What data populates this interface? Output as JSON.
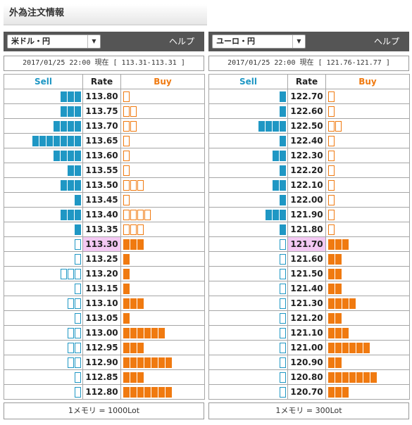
{
  "title": "外為注文情報",
  "panels": [
    {
      "currency": "米ドル・円",
      "help_label": "ヘルプ",
      "info": "2017/01/25  22:00 現在 [ 113.31-113.31 ]",
      "headers": {
        "sell": "Sell",
        "rate": "Rate",
        "buy": "Buy"
      },
      "current_rate": "113.30",
      "rows": [
        {
          "rate": "113.80",
          "sell": 3,
          "buy": 1
        },
        {
          "rate": "113.75",
          "sell": 3,
          "buy": 2
        },
        {
          "rate": "113.70",
          "sell": 4,
          "buy": 2
        },
        {
          "rate": "113.65",
          "sell": 7,
          "buy": 1
        },
        {
          "rate": "113.60",
          "sell": 4,
          "buy": 1
        },
        {
          "rate": "113.55",
          "sell": 2,
          "buy": 1
        },
        {
          "rate": "113.50",
          "sell": 3,
          "buy": 3
        },
        {
          "rate": "113.45",
          "sell": 1,
          "buy": 1
        },
        {
          "rate": "113.40",
          "sell": 3,
          "buy": 4
        },
        {
          "rate": "113.35",
          "sell": 1,
          "buy": 3
        },
        {
          "rate": "113.30",
          "sell": 1,
          "buy": 3
        },
        {
          "rate": "113.25",
          "sell": 1,
          "buy": 1
        },
        {
          "rate": "113.20",
          "sell": 3,
          "buy": 1
        },
        {
          "rate": "113.15",
          "sell": 1,
          "buy": 1
        },
        {
          "rate": "113.10",
          "sell": 2,
          "buy": 3
        },
        {
          "rate": "113.05",
          "sell": 1,
          "buy": 1
        },
        {
          "rate": "113.00",
          "sell": 2,
          "buy": 6
        },
        {
          "rate": "112.95",
          "sell": 2,
          "buy": 3
        },
        {
          "rate": "112.90",
          "sell": 2,
          "buy": 7
        },
        {
          "rate": "112.85",
          "sell": 1,
          "buy": 3
        },
        {
          "rate": "112.80",
          "sell": 1,
          "buy": 7
        }
      ],
      "footer": "1メモリ = 1000Lot"
    },
    {
      "currency": "ユーロ・円",
      "help_label": "ヘルプ",
      "info": "2017/01/25  22:00 現在 [ 121.76-121.77 ]",
      "headers": {
        "sell": "Sell",
        "rate": "Rate",
        "buy": "Buy"
      },
      "current_rate": "121.70",
      "rows": [
        {
          "rate": "122.70",
          "sell": 1,
          "buy": 1
        },
        {
          "rate": "122.60",
          "sell": 1,
          "buy": 1
        },
        {
          "rate": "122.50",
          "sell": 4,
          "buy": 2
        },
        {
          "rate": "122.40",
          "sell": 1,
          "buy": 1
        },
        {
          "rate": "122.30",
          "sell": 2,
          "buy": 1
        },
        {
          "rate": "122.20",
          "sell": 1,
          "buy": 1
        },
        {
          "rate": "122.10",
          "sell": 2,
          "buy": 1
        },
        {
          "rate": "122.00",
          "sell": 1,
          "buy": 1
        },
        {
          "rate": "121.90",
          "sell": 3,
          "buy": 1
        },
        {
          "rate": "121.80",
          "sell": 1,
          "buy": 1
        },
        {
          "rate": "121.70",
          "sell": 1,
          "buy": 3
        },
        {
          "rate": "121.60",
          "sell": 1,
          "buy": 2
        },
        {
          "rate": "121.50",
          "sell": 1,
          "buy": 2
        },
        {
          "rate": "121.40",
          "sell": 1,
          "buy": 2
        },
        {
          "rate": "121.30",
          "sell": 1,
          "buy": 4
        },
        {
          "rate": "121.20",
          "sell": 1,
          "buy": 2
        },
        {
          "rate": "121.10",
          "sell": 1,
          "buy": 3
        },
        {
          "rate": "121.00",
          "sell": 1,
          "buy": 6
        },
        {
          "rate": "120.90",
          "sell": 1,
          "buy": 2
        },
        {
          "rate": "120.80",
          "sell": 1,
          "buy": 7
        },
        {
          "rate": "120.70",
          "sell": 1,
          "buy": 3
        }
      ],
      "footer": "1メモリ = 300Lot"
    }
  ],
  "colors": {
    "sell": "#1f97c4",
    "buy": "#f07a10",
    "current_rate_bg": "#f3c9f3",
    "header_bar": "#555555"
  }
}
